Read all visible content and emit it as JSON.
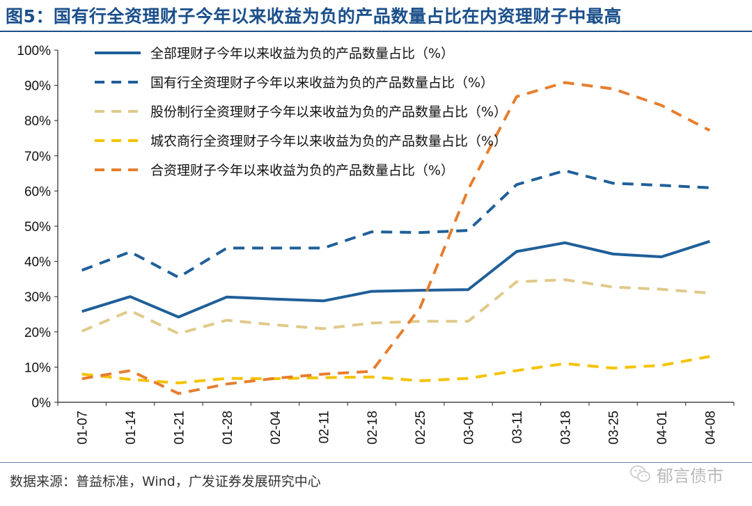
{
  "title": "图5：国有行全资理财子今年以来收益为负的产品数量占比在内资理财子中最高",
  "footer": {
    "source": "数据来源：普益标准，Wind，广发证券发展研究中心",
    "watermark": "郁言债市",
    "watermark_icon": "wechat-icon"
  },
  "chart_data": {
    "type": "line",
    "title": "国有行全资理财子今年以来收益为负的产品数量占比在内资理财子中最高",
    "xlabel": "",
    "ylabel": "",
    "ylim": [
      0,
      100
    ],
    "y_ticks": [
      "0%",
      "10%",
      "20%",
      "30%",
      "40%",
      "50%",
      "60%",
      "70%",
      "80%",
      "90%",
      "100%"
    ],
    "categories": [
      "01-07",
      "01-14",
      "01-21",
      "01-28",
      "02-04",
      "02-11",
      "02-18",
      "02-25",
      "03-04",
      "03-11",
      "03-18",
      "03-25",
      "04-01",
      "04-08"
    ],
    "legend_position": "top-left",
    "series": [
      {
        "name": "全部理财子今年以来收益为负的产品数量占比（%）",
        "color": "#1f5f99",
        "style": "solid",
        "values": [
          25.8,
          30.0,
          24.2,
          29.9,
          29.3,
          28.8,
          31.5,
          31.8,
          32.0,
          42.8,
          45.3,
          42.1,
          41.3,
          45.7
        ]
      },
      {
        "name": "国有行全资理财子今年以来收益为负的产品数量占比（%）",
        "color": "#1f5f99",
        "style": "dashed",
        "values": [
          37.5,
          42.7,
          35.5,
          43.8,
          43.8,
          43.8,
          48.4,
          48.2,
          48.8,
          61.8,
          65.8,
          62.2,
          61.6,
          60.9
        ]
      },
      {
        "name": "股份制行全资理财子今年以来收益为负的产品数量占比（%）",
        "color": "#e0c98a",
        "style": "dashed",
        "values": [
          20.2,
          26.0,
          19.5,
          23.3,
          22.0,
          20.9,
          22.5,
          23.0,
          23.0,
          34.2,
          34.8,
          32.7,
          32.1,
          31.0
        ]
      },
      {
        "name": "城农商行全资理财子今年以来收益为负的产品数量占比（%）",
        "color": "#f4c300",
        "style": "dashed",
        "values": [
          8.0,
          6.5,
          5.5,
          6.8,
          6.7,
          7.0,
          7.2,
          6.1,
          6.8,
          9.0,
          11.0,
          9.7,
          10.5,
          13.0
        ]
      },
      {
        "name": "合资理财子今年以来收益为负的产品数量占比（%）",
        "color": "#e67e2e",
        "style": "dashed",
        "values": [
          6.7,
          9.0,
          2.5,
          5.2,
          6.8,
          8.0,
          8.8,
          26.8,
          60.5,
          86.8,
          90.8,
          89.0,
          84.3,
          77.2
        ]
      }
    ]
  }
}
